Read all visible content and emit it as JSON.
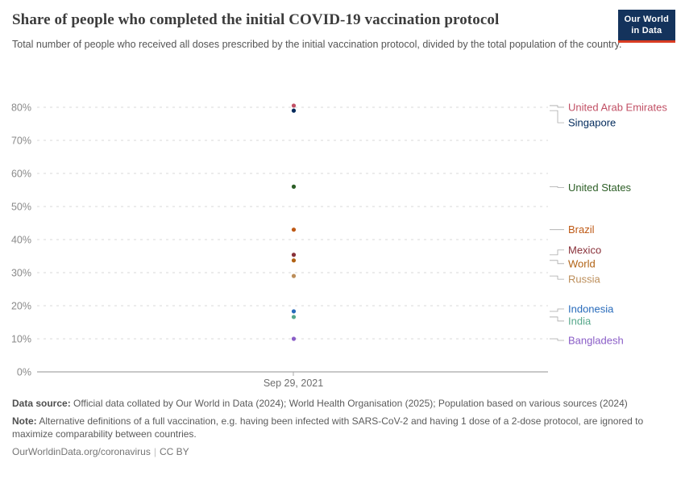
{
  "header": {
    "title": "Share of people who completed the initial COVID-19 vaccination protocol",
    "subtitle": "Total number of people who received all doses prescribed by the initial vaccination protocol, divided by the total population of the country.",
    "logo": {
      "line1": "Our World",
      "line2": "in Data",
      "bg_color": "#14335c",
      "accent_color": "#d93c22"
    }
  },
  "chart_data": {
    "type": "scatter",
    "title": "Share of people who completed the initial COVID-19 vaccination protocol",
    "xlabel": "",
    "ylabel": "",
    "x_tick_label": "Sep 29, 2021",
    "ylim": [
      0,
      80
    ],
    "y_tick_interval": 10,
    "y_tick_suffix": "%",
    "grid": "dashed-horizontal",
    "legend_position": "right-entity-labels",
    "series": [
      {
        "name": "United Arab Emirates",
        "value": 80.5,
        "color": "#c15065",
        "label_offset": 2
      },
      {
        "name": "Singapore",
        "value": 79,
        "color": "#00295b",
        "label_offset": 15
      },
      {
        "name": "United States",
        "value": 56,
        "color": "#2c5e26",
        "label_offset": 1
      },
      {
        "name": "Brazil",
        "value": 43,
        "color": "#be5915",
        "label_offset": 0
      },
      {
        "name": "Mexico",
        "value": 35.4,
        "color": "#883039",
        "label_offset": -6
      },
      {
        "name": "World",
        "value": 33.7,
        "color": "#b16214",
        "label_offset": 4
      },
      {
        "name": "Russia",
        "value": 29,
        "color": "#bc8e5a",
        "label_offset": 4
      },
      {
        "name": "Indonesia",
        "value": 18.3,
        "color": "#286bbb",
        "label_offset": -3
      },
      {
        "name": "India",
        "value": 16.6,
        "color": "#57a88b",
        "label_offset": 5
      },
      {
        "name": "Bangladesh",
        "value": 10,
        "color": "#8a5dc7",
        "label_offset": 2
      }
    ]
  },
  "footer": {
    "data_source_label": "Data source:",
    "data_source_text": " Official data collated by Our World in Data (2024); World Health Organisation (2025); Population based on various sources (2024)",
    "note_label": "Note:",
    "note_text": " Alternative definitions of a full vaccination, e.g. having been infected with SARS-CoV-2 and having 1 dose of a 2-dose protocol, are ignored to maximize comparability between countries.",
    "link_text": "OurWorldinData.org/coronavirus",
    "separator": "|",
    "license_text": "CC BY"
  }
}
